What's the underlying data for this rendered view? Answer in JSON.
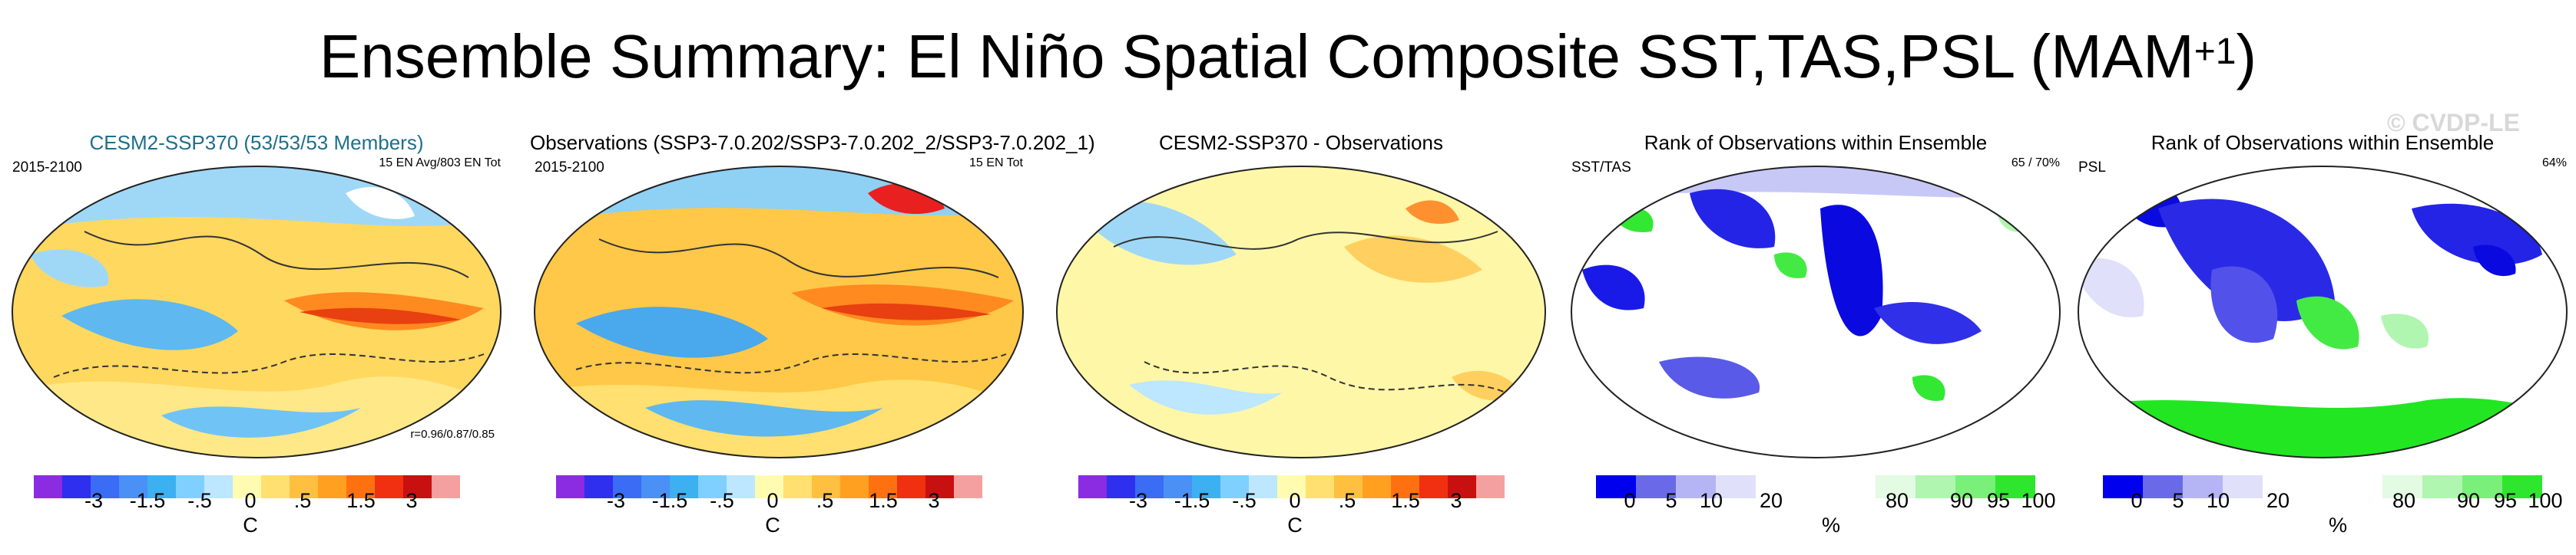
{
  "title": {
    "main": "Ensemble Summary: El Niño Spatial Composite SST,TAS,PSL (MAM",
    "sup": "+1",
    "close": ")"
  },
  "watermark": "© CVDP-LE",
  "panels": [
    {
      "title": "CESM2-SSP370 (53/53/53 Members)",
      "left_label": "2015-2100",
      "right_label": "15 EN Avg/803 EN Tot",
      "corr": "r=0.96/0.87/0.85",
      "unit": "C"
    },
    {
      "title": "Observations (SSP3-7.0.202/SSP3-7.0.202_2/SSP3-7.0.202_1)",
      "left_label": "2015-2100",
      "right_label": "15 EN Tot",
      "corr": "",
      "unit": "C"
    },
    {
      "title": "CESM2-SSP370 - Observations",
      "left_label": "",
      "right_label": "",
      "corr": "",
      "unit": "C"
    },
    {
      "title": "Rank of Observations within Ensemble",
      "left_label": "SST/TAS",
      "right_label": "65 /  70%",
      "corr": "",
      "unit": "%"
    },
    {
      "title": "Rank of Observations within Ensemble",
      "left_label": "PSL",
      "right_label": "64%",
      "corr": "",
      "unit": "%"
    }
  ],
  "chart_data": {
    "type": "heatmap",
    "temperature_colorbar": {
      "ticks": [
        "-3",
        "-1.5",
        "-.5",
        "0",
        ".5",
        "1.5",
        "3"
      ],
      "colors": [
        "#8b2be2",
        "#2f2ff0",
        "#3b6cf5",
        "#4a90f5",
        "#3cb0f0",
        "#7fd0ff",
        "#bde6ff",
        "#fffbb0",
        "#ffe070",
        "#ffc040",
        "#ffa020",
        "#ff7010",
        "#f03010",
        "#c81010",
        "#f5a0a0"
      ]
    },
    "rank_colorbar": {
      "ticks": [
        "0",
        "5",
        "10",
        "20",
        "80",
        "90",
        "95",
        "100"
      ],
      "colors": [
        "#0000ee",
        "#6a6ae8",
        "#b5b5f5",
        "#e0e0fa",
        "#ffffff",
        "#ffffff",
        "#ffffff",
        "#e3fae3",
        "#b0f5b0",
        "#7aef7a",
        "#2ee62e"
      ]
    }
  }
}
